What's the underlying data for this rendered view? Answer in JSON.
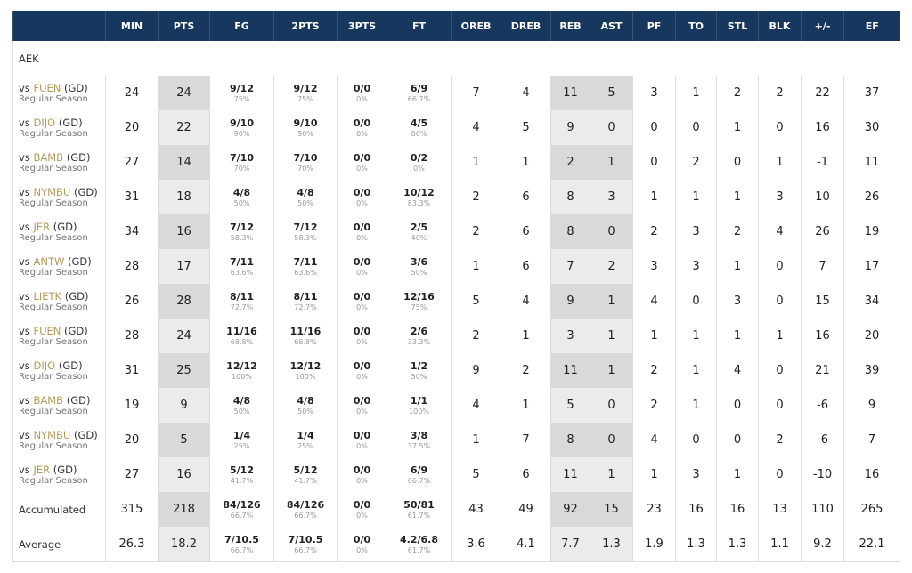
{
  "header": {
    "columns": [
      "MIN",
      "PTS",
      "FG",
      "2PTS",
      "3PTS",
      "FT",
      "OREB",
      "DREB",
      "REB",
      "AST",
      "PF",
      "TO",
      "STL",
      "BLK",
      "+/-",
      "EF"
    ]
  },
  "team": "AEK",
  "games": [
    {
      "matchup": [
        "vs",
        "FUEN",
        "(GD)"
      ],
      "season": "Regular Season",
      "cells": [
        "24",
        "24",
        [
          "9/12",
          "75%"
        ],
        [
          "9/12",
          "75%"
        ],
        [
          "0/0",
          "0%"
        ],
        [
          "6/9",
          "66.7%"
        ],
        "7",
        "4",
        "11",
        "5",
        "3",
        "1",
        "2",
        "2",
        "22",
        "37"
      ]
    },
    {
      "matchup": [
        "vs",
        "DIJO",
        "(GD)"
      ],
      "season": "Regular Season",
      "cells": [
        "20",
        "22",
        [
          "9/10",
          "90%"
        ],
        [
          "9/10",
          "90%"
        ],
        [
          "0/0",
          "0%"
        ],
        [
          "4/5",
          "80%"
        ],
        "4",
        "5",
        "9",
        "0",
        "0",
        "0",
        "1",
        "0",
        "16",
        "30"
      ]
    },
    {
      "matchup": [
        "vs",
        "BAMB",
        "(GD)"
      ],
      "season": "Regular Season",
      "cells": [
        "27",
        "14",
        [
          "7/10",
          "70%"
        ],
        [
          "7/10",
          "70%"
        ],
        [
          "0/0",
          "0%"
        ],
        [
          "0/2",
          "0%"
        ],
        "1",
        "1",
        "2",
        "1",
        "0",
        "2",
        "0",
        "1",
        "-1",
        "11"
      ]
    },
    {
      "matchup": [
        "vs",
        "NYMBU",
        "(GD)"
      ],
      "season": "Regular Season",
      "cells": [
        "31",
        "18",
        [
          "4/8",
          "50%"
        ],
        [
          "4/8",
          "50%"
        ],
        [
          "0/0",
          "0%"
        ],
        [
          "10/12",
          "83.3%"
        ],
        "2",
        "6",
        "8",
        "3",
        "1",
        "1",
        "1",
        "3",
        "10",
        "26"
      ]
    },
    {
      "matchup": [
        "vs",
        "JER",
        "(GD)"
      ],
      "season": "Regular Season",
      "cells": [
        "34",
        "16",
        [
          "7/12",
          "58.3%"
        ],
        [
          "7/12",
          "58.3%"
        ],
        [
          "0/0",
          "0%"
        ],
        [
          "2/5",
          "40%"
        ],
        "2",
        "6",
        "8",
        "0",
        "2",
        "3",
        "2",
        "4",
        "26",
        "19"
      ]
    },
    {
      "matchup": [
        "vs",
        "ANTW",
        "(GD)"
      ],
      "season": "Regular Season",
      "cells": [
        "28",
        "17",
        [
          "7/11",
          "63.6%"
        ],
        [
          "7/11",
          "63.6%"
        ],
        [
          "0/0",
          "0%"
        ],
        [
          "3/6",
          "50%"
        ],
        "1",
        "6",
        "7",
        "2",
        "3",
        "3",
        "1",
        "0",
        "7",
        "17"
      ]
    },
    {
      "matchup": [
        "vs",
        "LIETK",
        "(GD)"
      ],
      "season": "Regular Season",
      "cells": [
        "26",
        "28",
        [
          "8/11",
          "72.7%"
        ],
        [
          "8/11",
          "72.7%"
        ],
        [
          "0/0",
          "0%"
        ],
        [
          "12/16",
          "75%"
        ],
        "5",
        "4",
        "9",
        "1",
        "4",
        "0",
        "3",
        "0",
        "15",
        "34"
      ]
    },
    {
      "matchup": [
        "vs",
        "FUEN",
        "(GD)"
      ],
      "season": "Regular Season",
      "cells": [
        "28",
        "24",
        [
          "11/16",
          "68.8%"
        ],
        [
          "11/16",
          "68.8%"
        ],
        [
          "0/0",
          "0%"
        ],
        [
          "2/6",
          "33.3%"
        ],
        "2",
        "1",
        "3",
        "1",
        "1",
        "1",
        "1",
        "1",
        "16",
        "20"
      ]
    },
    {
      "matchup": [
        "vs",
        "DIJO",
        "(GD)"
      ],
      "season": "Regular Season",
      "cells": [
        "31",
        "25",
        [
          "12/12",
          "100%"
        ],
        [
          "12/12",
          "100%"
        ],
        [
          "0/0",
          "0%"
        ],
        [
          "1/2",
          "50%"
        ],
        "9",
        "2",
        "11",
        "1",
        "2",
        "1",
        "4",
        "0",
        "21",
        "39"
      ]
    },
    {
      "matchup": [
        "vs",
        "BAMB",
        "(GD)"
      ],
      "season": "Regular Season",
      "cells": [
        "19",
        "9",
        [
          "4/8",
          "50%"
        ],
        [
          "4/8",
          "50%"
        ],
        [
          "0/0",
          "0%"
        ],
        [
          "1/1",
          "100%"
        ],
        "4",
        "1",
        "5",
        "0",
        "2",
        "1",
        "0",
        "0",
        "-6",
        "9"
      ]
    },
    {
      "matchup": [
        "vs",
        "NYMBU",
        "(GD)"
      ],
      "season": "Regular Season",
      "cells": [
        "20",
        "5",
        [
          "1/4",
          "25%"
        ],
        [
          "1/4",
          "25%"
        ],
        [
          "0/0",
          "0%"
        ],
        [
          "3/8",
          "37.5%"
        ],
        "1",
        "7",
        "8",
        "0",
        "4",
        "0",
        "0",
        "2",
        "-6",
        "7"
      ]
    },
    {
      "matchup": [
        "vs",
        "JER",
        "(GD)"
      ],
      "season": "Regular Season",
      "cells": [
        "27",
        "16",
        [
          "5/12",
          "41.7%"
        ],
        [
          "5/12",
          "41.7%"
        ],
        [
          "0/0",
          "0%"
        ],
        [
          "6/9",
          "66.7%"
        ],
        "5",
        "6",
        "11",
        "1",
        "1",
        "3",
        "1",
        "0",
        "-10",
        "16"
      ]
    }
  ],
  "totals": [
    {
      "label": "Accumulated",
      "cells": [
        "315",
        "218",
        [
          "84/126",
          "66.7%"
        ],
        [
          "84/126",
          "66.7%"
        ],
        [
          "0/0",
          "0%"
        ],
        [
          "50/81",
          "61.7%"
        ],
        "43",
        "49",
        "92",
        "15",
        "23",
        "16",
        "16",
        "13",
        "110",
        "265"
      ]
    },
    {
      "label": "Average",
      "cells": [
        "26.3",
        "18.2",
        [
          "7/10.5",
          "66.7%"
        ],
        [
          "7/10.5",
          "66.7%"
        ],
        [
          "0/0",
          "0%"
        ],
        [
          "4.2/6.8",
          "61.7%"
        ],
        "3.6",
        "4.1",
        "7.7",
        "1.3",
        "1.9",
        "1.3",
        "1.3",
        "1.1",
        "9.2",
        "22.1"
      ]
    }
  ]
}
